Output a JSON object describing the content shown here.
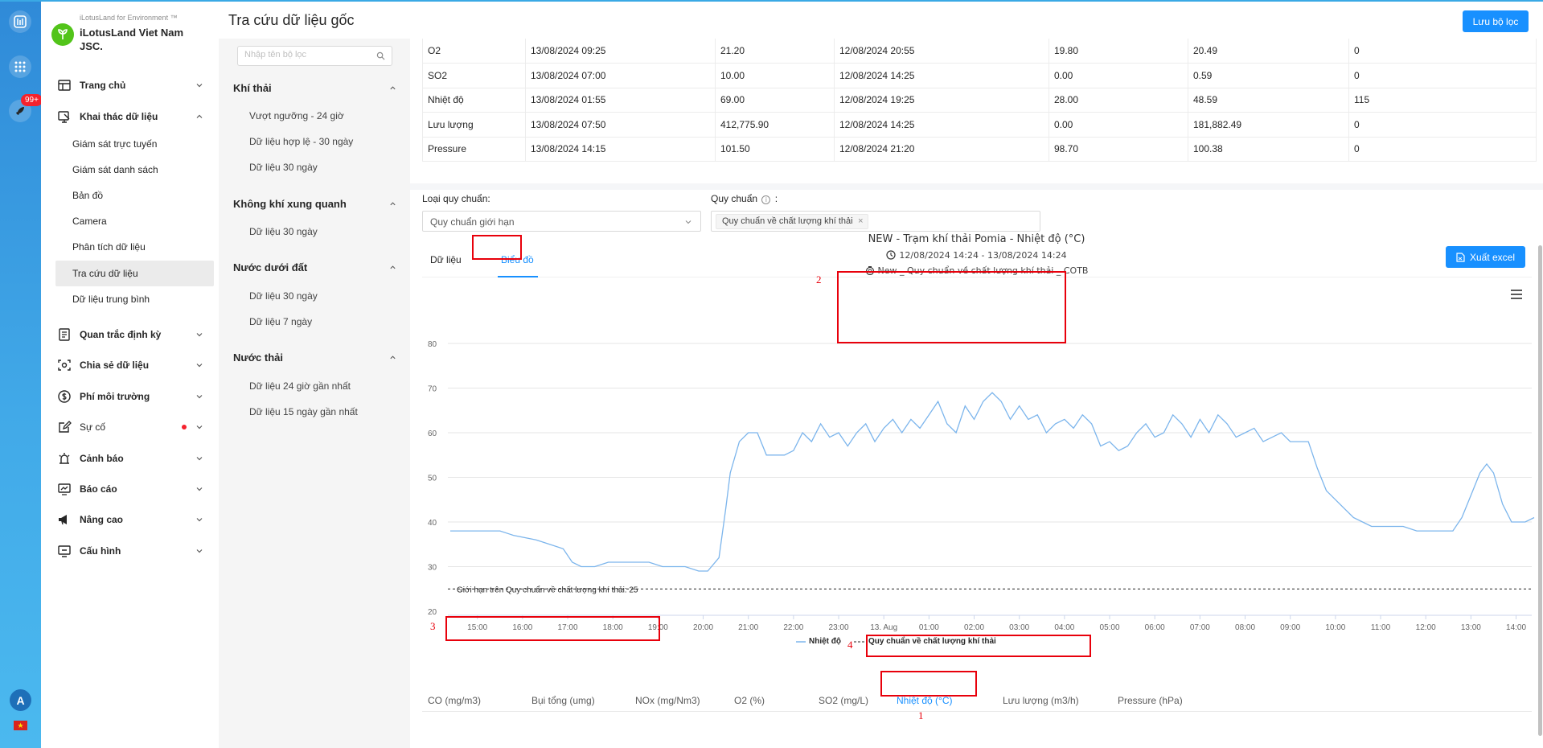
{
  "rail": {
    "badge": "99+",
    "avatar": "A"
  },
  "brand": {
    "small": "iLotusLand for Environment ™",
    "name": "iLotusLand Viet Nam JSC."
  },
  "menu": {
    "items": [
      {
        "label": "Trang chủ",
        "icon": "home-icon"
      },
      {
        "label": "Khai thác dữ liệu",
        "icon": "data-icon"
      },
      {
        "label": "Quan trắc định kỳ",
        "icon": "periodic-icon"
      },
      {
        "label": "Chia sẻ dữ liệu",
        "icon": "share-icon"
      },
      {
        "label": "Phí môi trường",
        "icon": "fee-icon"
      },
      {
        "label": "Sự cố",
        "icon": "incident-icon"
      },
      {
        "label": "Cảnh báo",
        "icon": "alarm-icon"
      },
      {
        "label": "Báo cáo",
        "icon": "report-icon"
      },
      {
        "label": "Nâng cao",
        "icon": "megaphone-icon"
      },
      {
        "label": "Cấu hình",
        "icon": "config-icon"
      }
    ],
    "sub_items": [
      "Giám sát trực tuyến",
      "Giám sát danh sách",
      "Bản đồ",
      "Camera",
      "Phân tích dữ liệu",
      "Tra cứu dữ liệu",
      "Dữ liệu trung bình"
    ]
  },
  "header": {
    "title": "Tra cứu dữ liệu gốc",
    "save_label": "Lưu bộ lọc"
  },
  "filters": {
    "search_placeholder": "Nhập tên bộ lọc",
    "groups": [
      {
        "title": "Khí thải",
        "items": [
          "Vượt ngưỡng - 24 giờ",
          "Dữ liệu hợp lệ - 30 ngày",
          "Dữ liệu 30 ngày"
        ]
      },
      {
        "title": "Không khí xung quanh",
        "items": [
          "Dữ liệu 30 ngày"
        ]
      },
      {
        "title": "Nước dưới đất",
        "items": [
          "Dữ liệu 30 ngày",
          "Dữ liệu 7 ngày"
        ]
      },
      {
        "title": "Nước thải",
        "items": [
          "Dữ liệu 24 giờ gần nhất",
          "Dữ liệu 15 ngày gần nhất"
        ]
      }
    ]
  },
  "table": {
    "rows": [
      [
        "O2",
        "13/08/2024 09:25",
        "21.20",
        "12/08/2024 20:55",
        "19.80",
        "20.49",
        "0"
      ],
      [
        "SO2",
        "13/08/2024 07:00",
        "10.00",
        "12/08/2024 14:25",
        "0.00",
        "0.59",
        "0"
      ],
      [
        "Nhiệt độ",
        "13/08/2024 01:55",
        "69.00",
        "12/08/2024 19:25",
        "28.00",
        "48.59",
        "115"
      ],
      [
        "Lưu lượng",
        "13/08/2024 07:50",
        "412,775.90",
        "12/08/2024 14:25",
        "0.00",
        "181,882.49",
        "0"
      ],
      [
        "Pressure",
        "13/08/2024 14:15",
        "101.50",
        "12/08/2024 21:20",
        "98.70",
        "100.38",
        "0"
      ]
    ]
  },
  "standard": {
    "type_label": "Loại quy chuẩn:",
    "type_value": "Quy chuẩn giới hạn",
    "label": "Quy chuẩn",
    "label_suffix": ":",
    "tag": "Quy chuẩn về chất lượng khí thải",
    "tag_close": "×"
  },
  "view_tabs": {
    "data": "Dữ liệu",
    "chart": "Biểu đồ"
  },
  "export_label": "Xuất excel",
  "annotations": [
    "1",
    "2",
    "3",
    "4"
  ],
  "chart_data": {
    "type": "line",
    "title": "NEW - Trạm khí thải Pomia - Nhiệt độ (°C)",
    "subtitle": "12/08/2024 14:24 - 13/08/2024 14:24",
    "subtitle2": "New _ Quy chuẩn về chất lượng khí thải _ COTB",
    "ylim": [
      20,
      80
    ],
    "yticks": [
      20,
      30,
      40,
      50,
      60,
      70,
      80
    ],
    "xticks": [
      "15:00",
      "16:00",
      "17:00",
      "18:00",
      "19:00",
      "20:00",
      "21:00",
      "22:00",
      "23:00",
      "13. Aug",
      "01:00",
      "02:00",
      "03:00",
      "04:00",
      "05:00",
      "06:00",
      "07:00",
      "08:00",
      "09:00",
      "10:00",
      "11:00",
      "12:00",
      "13:00",
      "14:00"
    ],
    "x_hours_start": 14.4,
    "x_hours_end": 38.4,
    "grid": true,
    "legend_position": "bottom-center",
    "series": [
      {
        "name": "Nhiệt độ",
        "color": "#7cb5ec",
        "points": [
          [
            14.4,
            38
          ],
          [
            15.0,
            38
          ],
          [
            15.5,
            38
          ],
          [
            15.8,
            37
          ],
          [
            16.3,
            36
          ],
          [
            16.6,
            35
          ],
          [
            16.9,
            34
          ],
          [
            17.1,
            31
          ],
          [
            17.3,
            30
          ],
          [
            17.6,
            30
          ],
          [
            17.9,
            31
          ],
          [
            18.3,
            31
          ],
          [
            18.8,
            31
          ],
          [
            19.1,
            30
          ],
          [
            19.6,
            30
          ],
          [
            19.9,
            29
          ],
          [
            20.1,
            29
          ],
          [
            20.35,
            32
          ],
          [
            20.5,
            43
          ],
          [
            20.6,
            51
          ],
          [
            20.8,
            58
          ],
          [
            21.0,
            60
          ],
          [
            21.2,
            60
          ],
          [
            21.4,
            55
          ],
          [
            21.8,
            55
          ],
          [
            22.0,
            56
          ],
          [
            22.2,
            60
          ],
          [
            22.4,
            58
          ],
          [
            22.6,
            62
          ],
          [
            22.8,
            59
          ],
          [
            23.0,
            60
          ],
          [
            23.2,
            57
          ],
          [
            23.4,
            60
          ],
          [
            23.6,
            62
          ],
          [
            23.8,
            58
          ],
          [
            24.0,
            61
          ],
          [
            24.2,
            63
          ],
          [
            24.4,
            60
          ],
          [
            24.6,
            63
          ],
          [
            24.8,
            61
          ],
          [
            25.0,
            64
          ],
          [
            25.2,
            67
          ],
          [
            25.4,
            62
          ],
          [
            25.6,
            60
          ],
          [
            25.8,
            66
          ],
          [
            26.0,
            63
          ],
          [
            26.2,
            67
          ],
          [
            26.4,
            69
          ],
          [
            26.6,
            67
          ],
          [
            26.8,
            63
          ],
          [
            27.0,
            66
          ],
          [
            27.2,
            63
          ],
          [
            27.4,
            64
          ],
          [
            27.6,
            60
          ],
          [
            27.8,
            62
          ],
          [
            28.0,
            63
          ],
          [
            28.2,
            61
          ],
          [
            28.4,
            64
          ],
          [
            28.6,
            62
          ],
          [
            28.8,
            57
          ],
          [
            29.0,
            58
          ],
          [
            29.2,
            56
          ],
          [
            29.4,
            57
          ],
          [
            29.6,
            60
          ],
          [
            29.8,
            62
          ],
          [
            30.0,
            59
          ],
          [
            30.2,
            60
          ],
          [
            30.4,
            64
          ],
          [
            30.6,
            62
          ],
          [
            30.8,
            59
          ],
          [
            31.0,
            63
          ],
          [
            31.2,
            60
          ],
          [
            31.4,
            64
          ],
          [
            31.6,
            62
          ],
          [
            31.8,
            59
          ],
          [
            32.0,
            60
          ],
          [
            32.2,
            61
          ],
          [
            32.4,
            58
          ],
          [
            32.6,
            59
          ],
          [
            32.8,
            60
          ],
          [
            33.0,
            58
          ],
          [
            33.4,
            58
          ],
          [
            33.6,
            52
          ],
          [
            33.8,
            47
          ],
          [
            34.0,
            45
          ],
          [
            34.2,
            43
          ],
          [
            34.4,
            41
          ],
          [
            34.6,
            40
          ],
          [
            34.8,
            39
          ],
          [
            35.2,
            39
          ],
          [
            35.5,
            39
          ],
          [
            35.8,
            38
          ],
          [
            36.2,
            38
          ],
          [
            36.6,
            38
          ],
          [
            36.8,
            41
          ],
          [
            37.0,
            46
          ],
          [
            37.2,
            51
          ],
          [
            37.35,
            53
          ],
          [
            37.5,
            51
          ],
          [
            37.7,
            44
          ],
          [
            37.9,
            40
          ],
          [
            38.2,
            40
          ],
          [
            38.4,
            41
          ]
        ]
      },
      {
        "name": "Quy chuẩn về chất lượng khí thải",
        "color": "#262626",
        "value": 25,
        "label": "Giới hạn trên Quy chuẩn về chất lượng khí thải: 25"
      }
    ]
  },
  "param_tabs": [
    "CO (mg/m3)",
    "Bụi tổng (umg)",
    "NOx (mg/Nm3)",
    "O2 (%)",
    "SO2 (mg/L)",
    "Nhiệt độ (°C)",
    "Lưu lượng (m3/h)",
    "Pressure (hPa)"
  ]
}
